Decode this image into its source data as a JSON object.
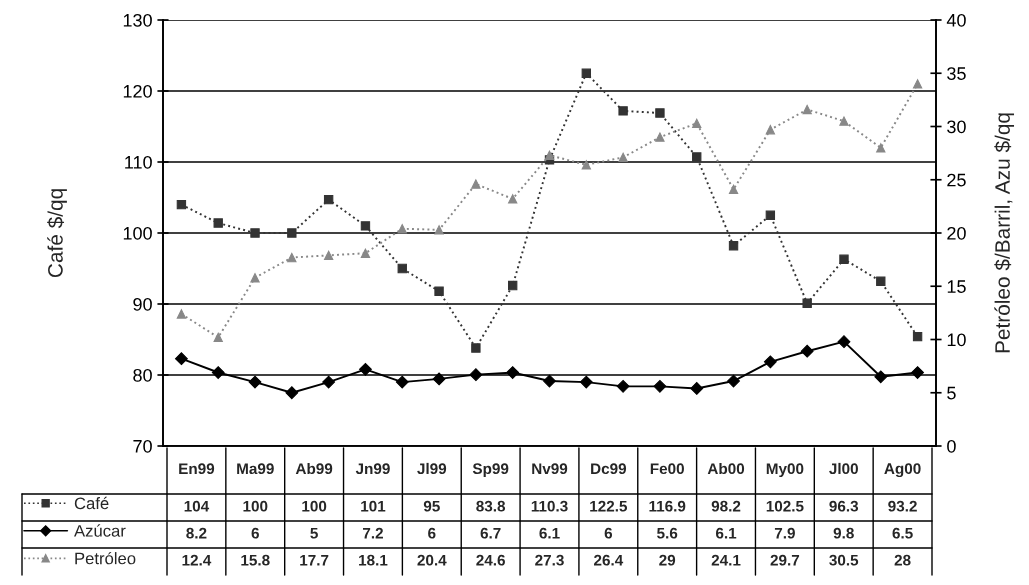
{
  "chart_data": {
    "type": "line",
    "categories": [
      null,
      null,
      null,
      null,
      null,
      null,
      null,
      null,
      null,
      null,
      null,
      null,
      null,
      null,
      null,
      null,
      null,
      null,
      null,
      null,
      null
    ],
    "annotations": [
      "En99",
      "Ma99",
      "Ab99",
      "Jn99",
      "Jl99",
      "Sp99",
      "Nv99",
      "Dc99",
      "Fe00",
      "Ab00",
      "My00",
      "Jl00",
      "Ag00",
      "104",
      "100",
      "100",
      "101",
      "95",
      "83.8",
      "110.3",
      "122.5",
      "116.9",
      "98.2",
      "102.5",
      "96.3",
      "93.2",
      "8.2",
      "6",
      "5",
      "7.2",
      "6",
      "6.7",
      "6.1",
      "6",
      "5.6",
      "6.1",
      "7.9",
      "9.8",
      "6.5",
      "12.4",
      "15.8",
      "17.7",
      "18.1",
      "20.4",
      "24.6",
      "27.3",
      "26.4",
      "29",
      "24.1",
      "29.7",
      "30.5",
      "28"
    ],
    "ylabel": "Café $/qq",
    "y2label": "Petróleo $/Barril, Azu $/qq",
    "ylim": [
      70,
      130
    ],
    "yticks": [
      70,
      80,
      90,
      100,
      110,
      120,
      130
    ],
    "y2lim": [
      0,
      40
    ],
    "y2ticks": [
      0,
      5,
      10,
      15,
      20,
      25,
      30,
      35,
      40
    ],
    "grid": "y",
    "legend": "bottom left",
    "series": [
      {
        "name": "Café",
        "color": "#333333",
        "marker": "square",
        "line_style": "dotted",
        "values": [
          104,
          101.4,
          100,
          100,
          104.7,
          101,
          95,
          91.8,
          83.8,
          92.6,
          110.3,
          122.5,
          117.2,
          116.9,
          110.7,
          98.2,
          102.5,
          90.1,
          96.3,
          93.2,
          85.4
        ]
      },
      {
        "name": "Azúcar",
        "color": "#000000",
        "marker": "diamond",
        "line_style": "solid",
        "axis": "y2",
        "values": [
          8.2,
          6.9,
          6,
          5,
          6.0,
          7.2,
          6,
          6.3,
          6.7,
          6.9,
          6.1,
          6,
          5.6,
          5.6,
          5.4,
          6.1,
          7.9,
          8.9,
          9.8,
          6.5,
          6.9
        ]
      },
      {
        "name": "Petróleo",
        "color": "#888888",
        "marker": "triangle",
        "line_style": "dotted",
        "axis": "y2",
        "values": [
          12.4,
          10.2,
          15.8,
          17.7,
          17.9,
          18.1,
          20.4,
          20.3,
          24.6,
          23.2,
          27.3,
          26.4,
          27.1,
          29,
          30.3,
          24.1,
          29.7,
          31.6,
          30.5,
          28,
          34.0
        ]
      }
    ]
  }
}
